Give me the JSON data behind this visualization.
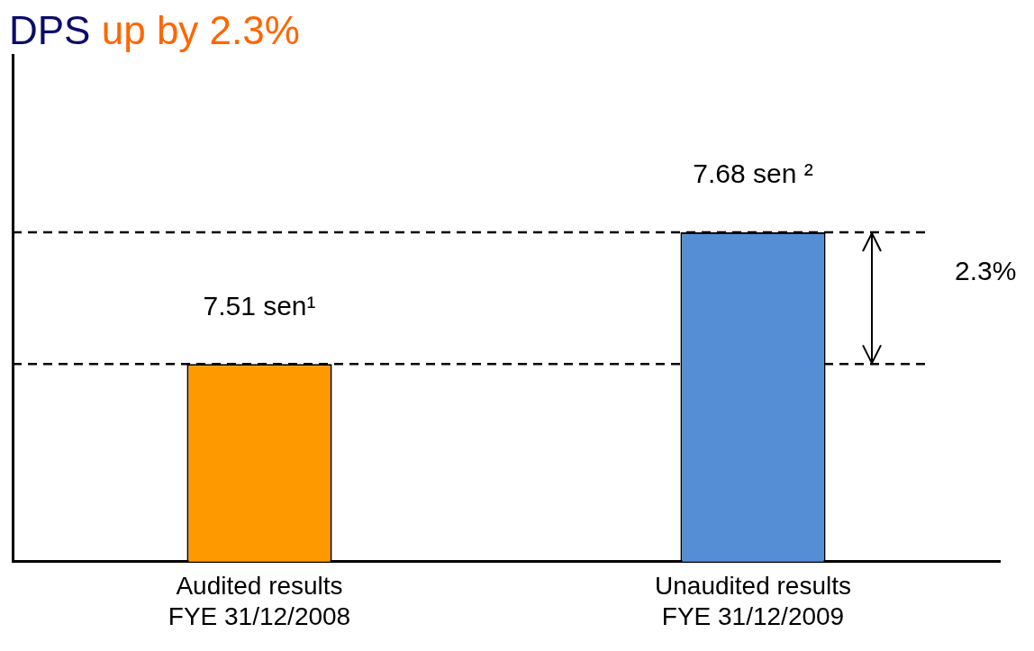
{
  "chart_data": {
    "type": "bar",
    "title": "DPS up by 2.3%",
    "categories": [
      "Audited results\nFYE 31/12/2008",
      "Unaudited results\nFYE 31/12/2009"
    ],
    "values": [
      7.51,
      7.68
    ],
    "colors": [
      "#ff9900",
      "#558ed5"
    ],
    "value_labels": [
      "7.51 sen¹",
      "7.68 sen ²"
    ],
    "ylim": [
      7.255,
      7.91
    ],
    "tick_labels": "x",
    "grid": false,
    "legend": false,
    "ref_lines": [
      {
        "axis": "y",
        "value": 7.51,
        "line_style": "dashed",
        "color": "#000000"
      },
      {
        "axis": "y",
        "value": 7.68,
        "line_style": "dashed",
        "color": "#000000"
      }
    ],
    "annotations": [
      "2.3%"
    ]
  }
}
